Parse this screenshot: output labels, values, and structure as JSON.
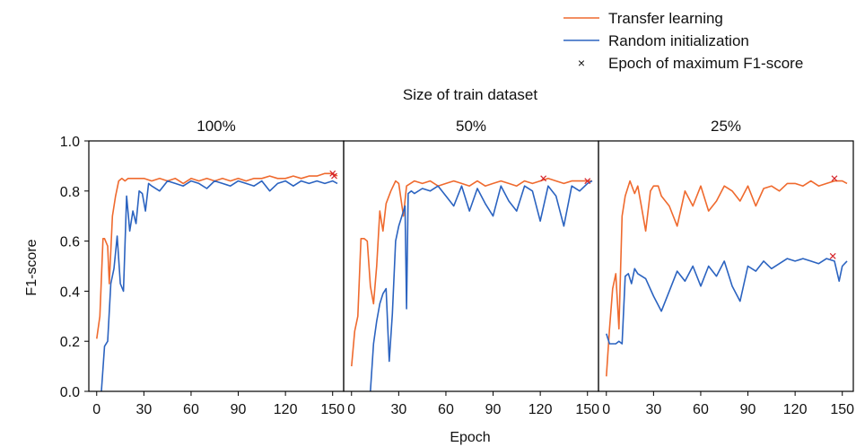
{
  "chart_data": {
    "type": "line",
    "title": "Size of train dataset",
    "xlabel": "Epoch",
    "ylabel": "F1-score",
    "xlim": [
      -5,
      157
    ],
    "ylim": [
      0,
      1
    ],
    "xticks": [
      0,
      30,
      60,
      90,
      120,
      150
    ],
    "yticks": [
      0.0,
      0.2,
      0.4,
      0.6,
      0.8,
      1.0
    ],
    "ytick_labels": [
      "0.0",
      "0.2",
      "0.4",
      "0.6",
      "0.8",
      "1.0"
    ],
    "grid": false,
    "legend_position": "top-right",
    "legend": {
      "transfer": "Transfer learning",
      "random": "Random initialization",
      "marker": "Epoch of maximum F1-score"
    },
    "colors": {
      "transfer": "#ef6a2e",
      "random": "#2b63c0",
      "marker": "#d6252a"
    },
    "panels": [
      {
        "label": "100%",
        "series": [
          {
            "name": "Transfer learning",
            "x": [
              0,
              2,
              4,
              5,
              7,
              8,
              10,
              12,
              14,
              16,
              18,
              20,
              25,
              30,
              35,
              40,
              45,
              50,
              55,
              60,
              65,
              70,
              75,
              80,
              85,
              90,
              95,
              100,
              105,
              110,
              115,
              120,
              125,
              130,
              135,
              140,
              145,
              150,
              153
            ],
            "y": [
              0.21,
              0.3,
              0.61,
              0.61,
              0.58,
              0.43,
              0.7,
              0.78,
              0.84,
              0.85,
              0.84,
              0.85,
              0.85,
              0.85,
              0.84,
              0.85,
              0.84,
              0.85,
              0.83,
              0.85,
              0.84,
              0.85,
              0.84,
              0.85,
              0.84,
              0.85,
              0.84,
              0.85,
              0.85,
              0.86,
              0.85,
              0.85,
              0.86,
              0.85,
              0.86,
              0.86,
              0.87,
              0.87,
              0.86
            ]
          },
          {
            "name": "Random initialization",
            "x": [
              3,
              5,
              7,
              9,
              11,
              13,
              15,
              17,
              19,
              21,
              23,
              25,
              27,
              29,
              31,
              33,
              35,
              40,
              45,
              50,
              55,
              60,
              65,
              70,
              75,
              80,
              85,
              90,
              95,
              100,
              105,
              110,
              115,
              120,
              125,
              130,
              135,
              140,
              145,
              150,
              153
            ],
            "y": [
              0.0,
              0.18,
              0.2,
              0.43,
              0.49,
              0.62,
              0.43,
              0.4,
              0.78,
              0.64,
              0.72,
              0.67,
              0.8,
              0.79,
              0.72,
              0.83,
              0.82,
              0.8,
              0.84,
              0.83,
              0.82,
              0.84,
              0.83,
              0.81,
              0.84,
              0.83,
              0.82,
              0.84,
              0.83,
              0.82,
              0.84,
              0.8,
              0.83,
              0.84,
              0.82,
              0.84,
              0.83,
              0.84,
              0.83,
              0.84,
              0.83
            ]
          }
        ],
        "max_markers": [
          {
            "x": 150,
            "y": 0.87
          },
          {
            "x": 151,
            "y": 0.86
          }
        ]
      },
      {
        "label": "50%",
        "series": [
          {
            "name": "Transfer learning",
            "x": [
              0,
              2,
              4,
              6,
              8,
              10,
              12,
              14,
              16,
              18,
              20,
              22,
              25,
              28,
              30,
              33,
              35,
              40,
              45,
              50,
              55,
              60,
              65,
              70,
              75,
              80,
              85,
              90,
              95,
              100,
              105,
              110,
              115,
              120,
              125,
              130,
              135,
              140,
              145,
              150,
              153
            ],
            "y": [
              0.1,
              0.24,
              0.3,
              0.61,
              0.61,
              0.6,
              0.42,
              0.35,
              0.5,
              0.72,
              0.64,
              0.75,
              0.8,
              0.84,
              0.83,
              0.7,
              0.82,
              0.84,
              0.83,
              0.84,
              0.82,
              0.83,
              0.84,
              0.83,
              0.82,
              0.84,
              0.82,
              0.83,
              0.84,
              0.83,
              0.82,
              0.84,
              0.83,
              0.84,
              0.85,
              0.84,
              0.83,
              0.84,
              0.84,
              0.84,
              0.84
            ]
          },
          {
            "name": "Random initialization",
            "x": [
              12,
              14,
              16,
              18,
              20,
              22,
              24,
              26,
              28,
              30,
              32,
              34,
              35,
              36,
              38,
              40,
              45,
              50,
              55,
              60,
              65,
              70,
              75,
              80,
              85,
              90,
              95,
              100,
              105,
              110,
              115,
              120,
              125,
              130,
              135,
              140,
              145,
              150,
              153
            ],
            "y": [
              0.0,
              0.19,
              0.28,
              0.35,
              0.39,
              0.41,
              0.12,
              0.31,
              0.6,
              0.66,
              0.7,
              0.74,
              0.33,
              0.79,
              0.8,
              0.79,
              0.81,
              0.8,
              0.82,
              0.78,
              0.74,
              0.82,
              0.72,
              0.81,
              0.75,
              0.7,
              0.82,
              0.76,
              0.72,
              0.82,
              0.8,
              0.68,
              0.82,
              0.78,
              0.66,
              0.82,
              0.8,
              0.83,
              0.84
            ]
          }
        ],
        "max_markers": [
          {
            "x": 122,
            "y": 0.85
          },
          {
            "x": 150,
            "y": 0.84
          }
        ]
      },
      {
        "label": "25%",
        "series": [
          {
            "name": "Transfer learning",
            "x": [
              0,
              2,
              4,
              6,
              8,
              10,
              12,
              15,
              18,
              20,
              22,
              25,
              28,
              30,
              33,
              35,
              40,
              45,
              50,
              55,
              60,
              65,
              70,
              75,
              80,
              85,
              90,
              95,
              100,
              105,
              110,
              115,
              120,
              125,
              130,
              135,
              140,
              145,
              150,
              153
            ],
            "y": [
              0.06,
              0.25,
              0.41,
              0.47,
              0.25,
              0.7,
              0.78,
              0.84,
              0.79,
              0.82,
              0.75,
              0.64,
              0.8,
              0.82,
              0.82,
              0.78,
              0.74,
              0.66,
              0.8,
              0.74,
              0.82,
              0.72,
              0.76,
              0.82,
              0.8,
              0.76,
              0.82,
              0.74,
              0.81,
              0.82,
              0.8,
              0.83,
              0.83,
              0.82,
              0.84,
              0.82,
              0.83,
              0.84,
              0.84,
              0.83
            ]
          },
          {
            "name": "Random initialization",
            "x": [
              0,
              2,
              4,
              6,
              8,
              10,
              12,
              14,
              16,
              18,
              20,
              25,
              30,
              35,
              40,
              45,
              50,
              55,
              60,
              65,
              70,
              75,
              80,
              85,
              90,
              95,
              100,
              105,
              110,
              115,
              120,
              125,
              130,
              135,
              140,
              145,
              148,
              150,
              153
            ],
            "y": [
              0.23,
              0.19,
              0.19,
              0.19,
              0.2,
              0.19,
              0.46,
              0.47,
              0.43,
              0.49,
              0.47,
              0.45,
              0.38,
              0.32,
              0.4,
              0.48,
              0.44,
              0.5,
              0.42,
              0.5,
              0.46,
              0.52,
              0.42,
              0.36,
              0.5,
              0.48,
              0.52,
              0.49,
              0.51,
              0.53,
              0.52,
              0.53,
              0.52,
              0.51,
              0.53,
              0.52,
              0.44,
              0.5,
              0.52
            ]
          }
        ],
        "max_markers": [
          {
            "x": 145,
            "y": 0.85
          },
          {
            "x": 144,
            "y": 0.54
          }
        ]
      }
    ]
  }
}
